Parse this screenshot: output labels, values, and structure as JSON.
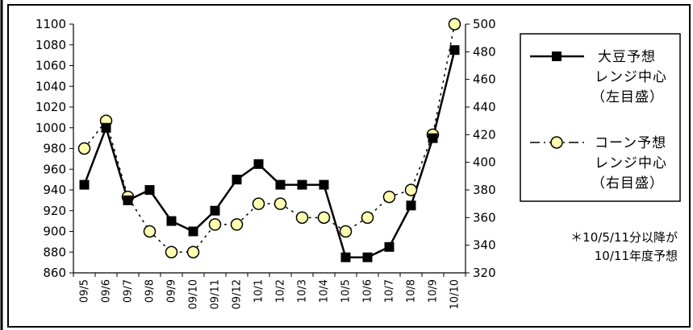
{
  "chart_data": {
    "type": "line",
    "categories": [
      "09/5",
      "09/6",
      "09/7",
      "09/8",
      "09/9",
      "09/10",
      "09/11",
      "09/12",
      "10/1",
      "10/2",
      "10/3",
      "10/4",
      "10/5",
      "10/6",
      "10/7",
      "10/8",
      "10/9",
      "10/10"
    ],
    "y_left": {
      "ylim": [
        860,
        1100
      ],
      "ticks": [
        860,
        880,
        900,
        920,
        940,
        960,
        980,
        1000,
        1020,
        1040,
        1060,
        1080,
        1100
      ]
    },
    "y_right": {
      "ylim": [
        320,
        500
      ],
      "ticks": [
        320,
        340,
        360,
        380,
        400,
        420,
        440,
        460,
        480,
        500
      ]
    },
    "series": [
      {
        "name": "大豆予想レンジ中心（左目盛）",
        "axis": "left",
        "color": "#000000",
        "marker": "square",
        "values": [
          945,
          1000,
          930,
          940,
          910,
          900,
          920,
          950,
          965,
          945,
          945,
          945,
          875,
          875,
          885,
          925,
          990,
          1075
        ]
      },
      {
        "name": "コーン予想レンジ中心（右目盛）",
        "axis": "right",
        "color": "#ffffb0",
        "marker": "circle",
        "values": [
          410,
          430,
          375,
          350,
          335,
          335,
          355,
          355,
          370,
          370,
          360,
          360,
          350,
          360,
          375,
          380,
          420,
          500
        ]
      }
    ],
    "legend": {
      "placement": "right",
      "soy_lines": [
        "大豆予想",
        "レンジ中心",
        "（左目盛）"
      ],
      "corn_lines": [
        "コーン予想",
        "レンジ中心",
        "（右目盛）"
      ]
    },
    "note_lines": [
      "＊10/5/11分以降が",
      "10/11年度予想"
    ],
    "grid": false
  }
}
